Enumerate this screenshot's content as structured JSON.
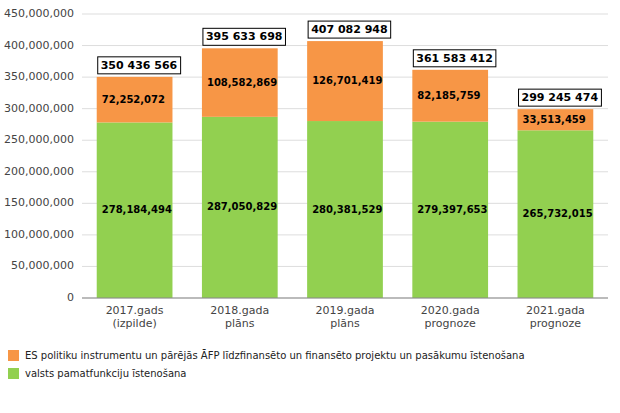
{
  "chart_data": {
    "type": "bar",
    "stacked": true,
    "grid": true,
    "legend": "bottom",
    "data_labels": true,
    "categories": [
      "2017.gads\n(izpilde)",
      "2018.gada\nplāns",
      "2019.gada\nplāns",
      "2020.gada\nprognoze",
      "2021.gada\nprognoze"
    ],
    "series": [
      {
        "name": "valsts pamatfunkciju īstenošana",
        "color": "#92d050",
        "values": [
          278184494,
          287050829,
          280381529,
          279397653,
          265732015
        ],
        "value_labels": [
          "278,184,494",
          "287,050,829",
          "280,381,529",
          "279,397,653",
          "265,732,015"
        ]
      },
      {
        "name": "ES politiku instrumentu un pārējās ĀFP līdzfinansēto un finansēto projektu un pasākumu īstenošana",
        "color": "#f79646",
        "values": [
          72252072,
          108582869,
          126701419,
          82185759,
          33513459
        ],
        "value_labels": [
          "72,252,072",
          "108,582,869",
          "126,701,419",
          "82,185,759",
          "33,513,459"
        ]
      }
    ],
    "totals": [
      350436566,
      395633698,
      407082948,
      361583412,
      299245474
    ],
    "total_labels": [
      "350 436 566",
      "395 633 698",
      "407 082 948",
      "361 583 412",
      "299 245 474"
    ],
    "ylim": [
      0,
      450000000
    ],
    "yticks": [
      0,
      {
        "value": 50000000,
        "label": "50,000,000"
      },
      {
        "value": 100000000,
        "label": "100,000,000"
      },
      {
        "value": 150000000,
        "label": "150,000,000"
      },
      {
        "value": 200000000,
        "label": "200,000,000"
      },
      {
        "value": 250000000,
        "label": "250,000,000"
      },
      {
        "value": 300000000,
        "label": "300,000,000"
      },
      {
        "value": 350000000,
        "label": "350,000,000"
      },
      {
        "value": 400000000,
        "label": "400,000,000"
      },
      {
        "value": 450000000,
        "label": "450,000,000"
      }
    ]
  }
}
